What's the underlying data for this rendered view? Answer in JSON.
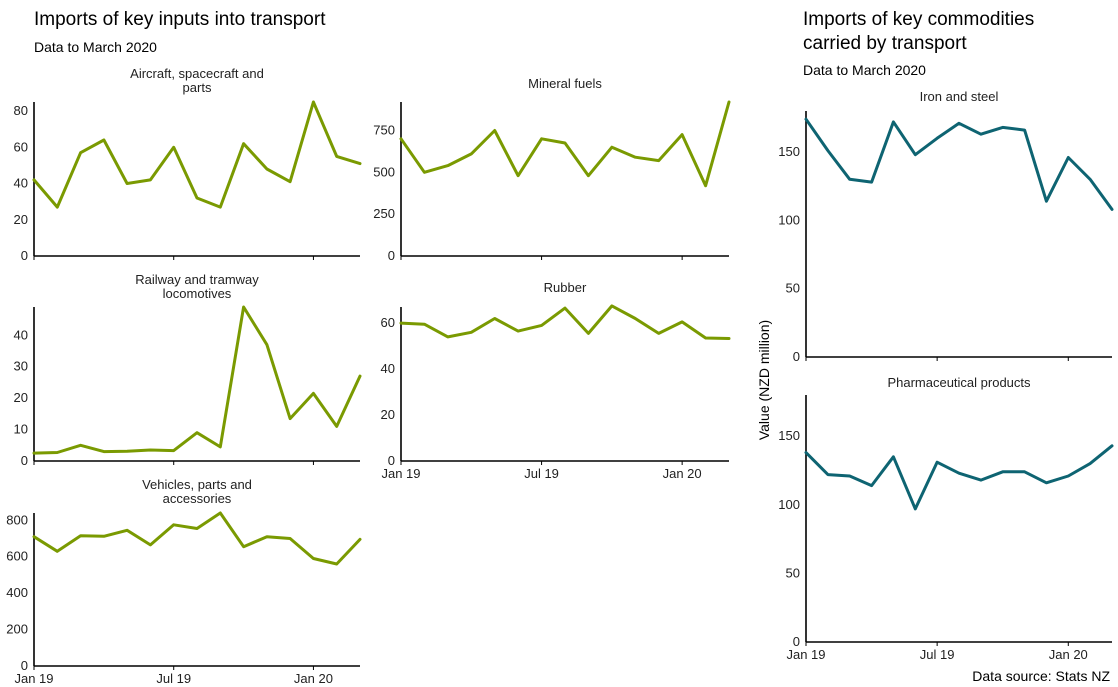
{
  "left_title": "Imports of key inputs into transport",
  "left_subtitle": "Data to March 2020",
  "right_title_line1": "Imports of key commodities",
  "right_title_line2": "carried by transport",
  "right_subtitle": "Data to March 2020",
  "y_axis_label": "Value (NZD million)",
  "source": "Data source: Stats NZ",
  "colors": {
    "inputs": "#7a9a01",
    "commodities": "#0e6472"
  },
  "chart_data": [
    {
      "type": "line",
      "title": [
        "Aircraft, spacecraft and",
        "parts"
      ],
      "x": [
        "2019-01",
        "2019-02",
        "2019-03",
        "2019-04",
        "2019-05",
        "2019-06",
        "2019-07",
        "2019-08",
        "2019-09",
        "2019-10",
        "2019-11",
        "2019-12",
        "2020-01",
        "2020-02",
        "2020-03"
      ],
      "values": [
        42,
        27,
        57,
        64,
        40,
        42,
        60,
        32,
        27,
        62,
        48,
        41,
        85,
        55,
        51
      ],
      "ylim": [
        0,
        85
      ],
      "yticks": [
        0,
        20,
        40,
        60,
        80
      ],
      "color": "inputs",
      "x_tick_labels": false
    },
    {
      "type": "line",
      "title": [
        "Mineral fuels"
      ],
      "x": [
        "2019-01",
        "2019-02",
        "2019-03",
        "2019-04",
        "2019-05",
        "2019-06",
        "2019-07",
        "2019-08",
        "2019-09",
        "2019-10",
        "2019-11",
        "2019-12",
        "2020-01",
        "2020-02",
        "2020-03"
      ],
      "values": [
        700,
        500,
        540,
        610,
        750,
        480,
        700,
        675,
        480,
        650,
        590,
        570,
        725,
        420,
        920
      ],
      "ylim": [
        0,
        920
      ],
      "yticks": [
        0,
        250,
        500,
        750
      ],
      "color": "inputs",
      "x_tick_labels": false
    },
    {
      "type": "line",
      "title": [
        "Railway and tramway",
        "locomotives"
      ],
      "x": [
        "2019-01",
        "2019-02",
        "2019-03",
        "2019-04",
        "2019-05",
        "2019-06",
        "2019-07",
        "2019-08",
        "2019-09",
        "2019-10",
        "2019-11",
        "2019-12",
        "2020-01",
        "2020-02",
        "2020-03"
      ],
      "values": [
        2.5,
        2.7,
        5,
        3,
        3.1,
        3.5,
        3.3,
        9,
        4.5,
        49,
        37,
        13.5,
        21.5,
        11,
        27
      ],
      "ylim": [
        0,
        49
      ],
      "yticks": [
        0,
        10,
        20,
        30,
        40
      ],
      "color": "inputs",
      "x_tick_labels": false
    },
    {
      "type": "line",
      "title": [
        "Rubber"
      ],
      "x": [
        "2019-01",
        "2019-02",
        "2019-03",
        "2019-04",
        "2019-05",
        "2019-06",
        "2019-07",
        "2019-08",
        "2019-09",
        "2019-10",
        "2019-11",
        "2019-12",
        "2020-01",
        "2020-02",
        "2020-03"
      ],
      "values": [
        60,
        59.5,
        54,
        56,
        62,
        56.5,
        59,
        66.5,
        55.5,
        67.5,
        62,
        55.5,
        60.5,
        53.5,
        53.3
      ],
      "ylim": [
        0,
        67
      ],
      "yticks": [
        0,
        20,
        40,
        60
      ],
      "color": "inputs",
      "x_tick_labels": true
    },
    {
      "type": "line",
      "title": [
        "Vehicles, parts and",
        "accessories"
      ],
      "x": [
        "2019-01",
        "2019-02",
        "2019-03",
        "2019-04",
        "2019-05",
        "2019-06",
        "2019-07",
        "2019-08",
        "2019-09",
        "2019-10",
        "2019-11",
        "2019-12",
        "2020-01",
        "2020-02",
        "2020-03"
      ],
      "values": [
        710,
        630,
        715,
        712,
        745,
        665,
        775,
        755,
        840,
        655,
        710,
        700,
        590,
        560,
        695
      ],
      "ylim": [
        0,
        840
      ],
      "yticks": [
        0,
        200,
        400,
        600,
        800
      ],
      "color": "inputs",
      "x_tick_labels": true
    },
    {
      "type": "line",
      "title": [
        "Iron and steel"
      ],
      "x": [
        "2019-01",
        "2019-02",
        "2019-03",
        "2019-04",
        "2019-05",
        "2019-06",
        "2019-07",
        "2019-08",
        "2019-09",
        "2019-10",
        "2019-11",
        "2019-12",
        "2020-01",
        "2020-02",
        "2020-03"
      ],
      "values": [
        174,
        151,
        130,
        128,
        172,
        148,
        160,
        171,
        163,
        168,
        166,
        114,
        146,
        130,
        108
      ],
      "ylim": [
        0,
        180
      ],
      "yticks": [
        0,
        50,
        100,
        150
      ],
      "color": "commodities",
      "x_tick_labels": false
    },
    {
      "type": "line",
      "title": [
        "Pharmaceutical products"
      ],
      "x": [
        "2019-01",
        "2019-02",
        "2019-03",
        "2019-04",
        "2019-05",
        "2019-06",
        "2019-07",
        "2019-08",
        "2019-09",
        "2019-10",
        "2019-11",
        "2019-12",
        "2020-01",
        "2020-02",
        "2020-03"
      ],
      "values": [
        138,
        122,
        121,
        114,
        135,
        97,
        131,
        123,
        118,
        124,
        124,
        116,
        121,
        130,
        143
      ],
      "ylim": [
        0,
        180
      ],
      "yticks": [
        0,
        50,
        100,
        150
      ],
      "color": "commodities",
      "x_tick_labels": true
    }
  ],
  "x_ticks": [
    {
      "x": "2019-01",
      "label": "Jan 19"
    },
    {
      "x": "2019-07",
      "label": "Jul 19"
    },
    {
      "x": "2020-01",
      "label": "Jan 20"
    }
  ]
}
